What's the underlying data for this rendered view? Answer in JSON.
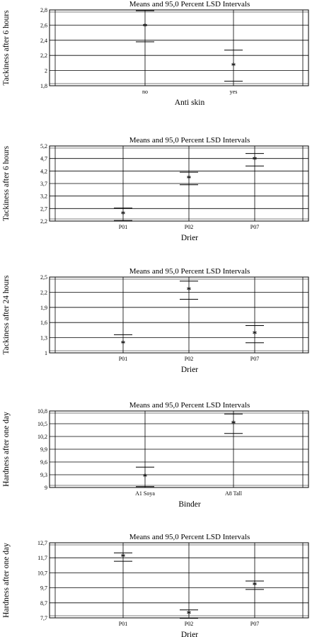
{
  "chart_data": [
    {
      "type": "scatter",
      "subtype": "means-with-intervals",
      "title": "Means and 95,0 Percent LSD Intervals",
      "xlabel": "Anti skin",
      "ylabel": "Tackiness after 6 hours",
      "categories": [
        "no",
        "yes"
      ],
      "means": [
        2.58,
        2.06
      ],
      "lower": [
        2.38,
        1.86
      ],
      "upper": [
        2.79,
        2.27
      ],
      "yticks": [
        "1,8",
        "2",
        "2,2",
        "2,4",
        "2,6",
        "2,8"
      ],
      "ylim": [
        1.8,
        2.8
      ],
      "grid": true
    },
    {
      "type": "scatter",
      "subtype": "means-with-intervals",
      "title": "Means and 95,0 Percent LSD Intervals",
      "xlabel": "Drier",
      "ylabel": "Tackiness after 6 hours",
      "categories": [
        "P01",
        "P02",
        "P07"
      ],
      "means": [
        2.47,
        3.9,
        4.65
      ],
      "lower": [
        2.22,
        3.65,
        4.4
      ],
      "upper": [
        2.72,
        4.15,
        4.9
      ],
      "yticks": [
        "2,2",
        "2,7",
        "3,2",
        "3,7",
        "4,2",
        "4,7",
        "5,2"
      ],
      "ylim": [
        2.2,
        5.2
      ],
      "grid": true
    },
    {
      "type": "scatter",
      "subtype": "means-with-intervals",
      "title": "Means and 95,0 Percent LSD Intervals",
      "xlabel": "Drier",
      "ylabel": "Tackiness after 24 hours",
      "categories": [
        "P01",
        "P02",
        "P07"
      ],
      "means": [
        1.18,
        2.24,
        1.37
      ],
      "lower": [
        1.0,
        2.06,
        1.2
      ],
      "upper": [
        1.36,
        2.42,
        1.54
      ],
      "yticks": [
        "1",
        "1,3",
        "1,6",
        "1,9",
        "2,2",
        "2,5"
      ],
      "ylim": [
        1.0,
        2.5
      ],
      "grid": true
    },
    {
      "type": "scatter",
      "subtype": "means-with-intervals",
      "title": "Means and 95,0 Percent LSD Intervals",
      "xlabel": "Binder",
      "ylabel": "Hardness after one day",
      "categories": [
        "A1 Soya",
        "A8 Tall"
      ],
      "means": [
        9.25,
        10.5
      ],
      "lower": [
        9.02,
        10.27
      ],
      "upper": [
        9.48,
        10.73
      ],
      "yticks": [
        "9",
        "9,3",
        "9,6",
        "9,9",
        "10,2",
        "10,5",
        "10,8"
      ],
      "ylim": [
        9.0,
        10.8
      ],
      "grid": true
    },
    {
      "type": "scatter",
      "subtype": "means-with-intervals",
      "title": "Means and 95,0 Percent LSD Intervals",
      "xlabel": "Drier",
      "ylabel": "Hardness after one day",
      "categories": [
        "P01",
        "P02",
        "P07"
      ],
      "means": [
        11.75,
        7.95,
        9.87
      ],
      "lower": [
        11.47,
        7.67,
        9.59
      ],
      "upper": [
        12.03,
        8.23,
        10.15
      ],
      "yticks": [
        "7,7",
        "8,7",
        "9,7",
        "10,7",
        "11,7",
        "12,7"
      ],
      "ylim": [
        7.7,
        12.7
      ],
      "grid": true
    }
  ]
}
